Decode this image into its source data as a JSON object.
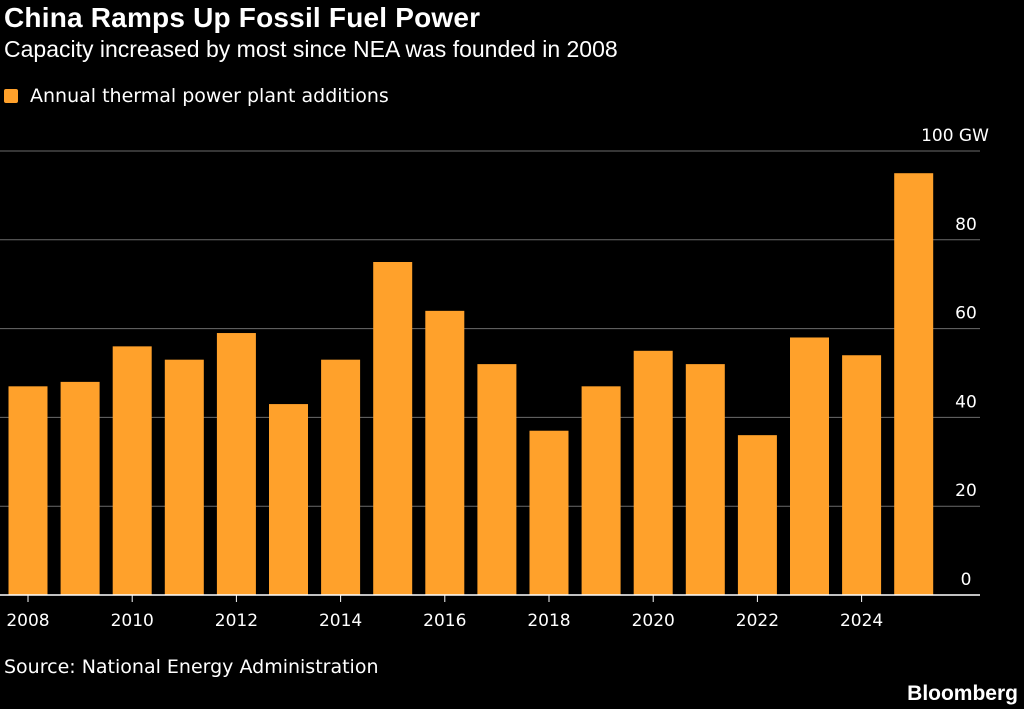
{
  "title": "China Ramps Up Fossil Fuel Power",
  "subtitle": "Capacity increased by most since NEA was founded in 2008",
  "source": "Source: National Energy Administration",
  "brand": "Bloomberg",
  "colors": {
    "bar": "#FFA12B",
    "background": "#000000",
    "grid": "#6b6b6b"
  },
  "chart_data": {
    "type": "bar",
    "title": "China Ramps Up Fossil Fuel Power",
    "subtitle": "Capacity increased by most since NEA was founded in 2008",
    "legend_position": "top-left",
    "categories": [
      "2008",
      "2009",
      "2010",
      "2011",
      "2012",
      "2013",
      "2014",
      "2015",
      "2016",
      "2017",
      "2018",
      "2019",
      "2020",
      "2021",
      "2022",
      "2023",
      "2024",
      "2025"
    ],
    "x_tick_labels": [
      "2008",
      "2010",
      "2012",
      "2014",
      "2016",
      "2018",
      "2020",
      "2022",
      "2024"
    ],
    "series": [
      {
        "name": "Annual thermal power plant additions",
        "values": [
          47,
          48,
          56,
          53,
          59,
          43,
          53,
          75,
          64,
          52,
          37,
          47,
          55,
          52,
          36,
          58,
          54,
          95
        ]
      }
    ],
    "ylim": [
      0,
      100
    ],
    "y_tick_labels": [
      "0",
      "20",
      "40",
      "60",
      "80",
      "100 GW"
    ],
    "grid": true
  }
}
